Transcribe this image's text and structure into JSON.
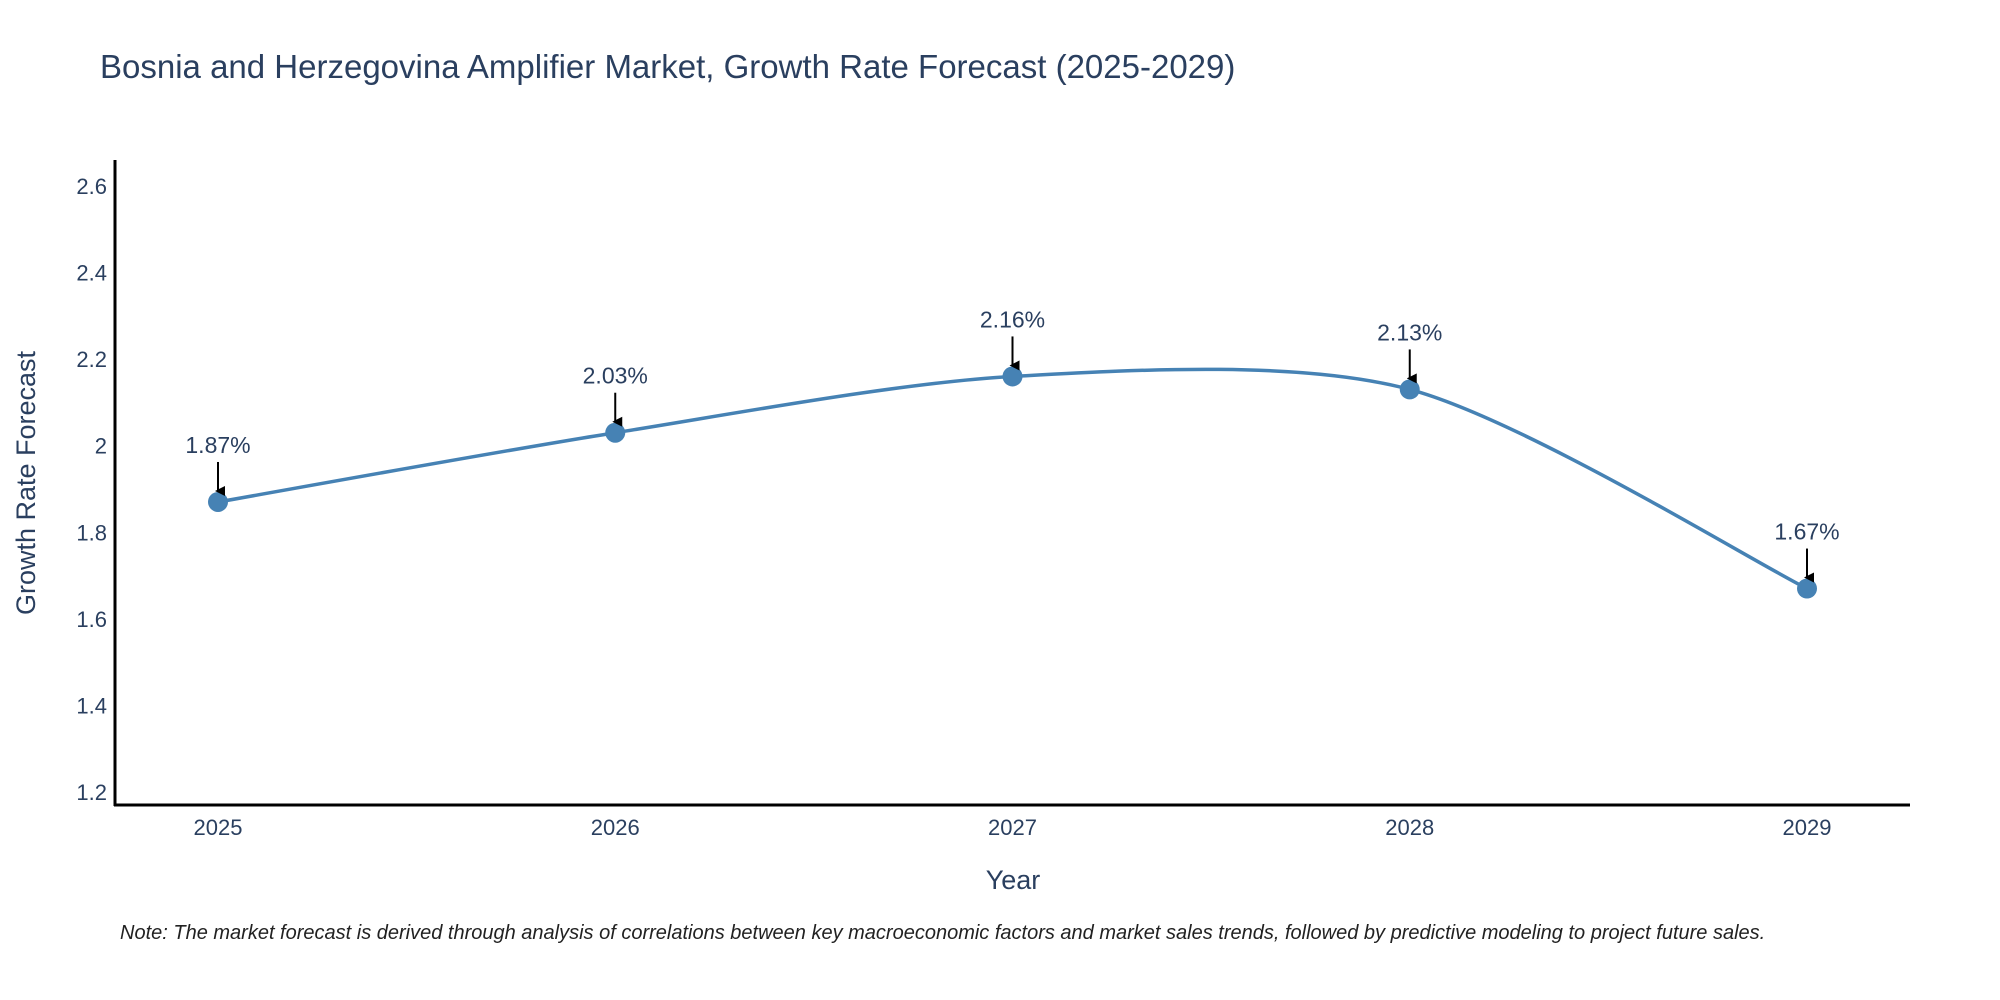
{
  "chart_data": {
    "type": "line",
    "title": "Bosnia and Herzegovina Amplifier Market, Growth Rate Forecast (2025-2029)",
    "xlabel": "Year",
    "ylabel": "Growth Rate Forecast",
    "categories": [
      "2025",
      "2026",
      "2027",
      "2028",
      "2029"
    ],
    "values": [
      1.87,
      2.03,
      2.16,
      2.13,
      1.67
    ],
    "data_labels": [
      "1.87%",
      "2.03%",
      "2.16%",
      "2.13%",
      "1.67%"
    ],
    "ylim": [
      1.17,
      2.66
    ],
    "yticks": [
      1.2,
      1.4,
      1.6,
      1.8,
      2,
      2.2,
      2.4,
      2.6
    ],
    "ytick_labels": [
      "1.2",
      "1.4",
      "1.6",
      "1.8",
      "2",
      "2.2",
      "2.4",
      "2.6"
    ],
    "grid": false,
    "line_shape": "spline",
    "line_color": "#4682b4",
    "marker_color": "#4682b4",
    "arrow_color": "#000000"
  },
  "note": "Note: The market forecast is derived through analysis of correlations between key macroeconomic factors and market sales trends, followed by predictive modeling to project future sales."
}
